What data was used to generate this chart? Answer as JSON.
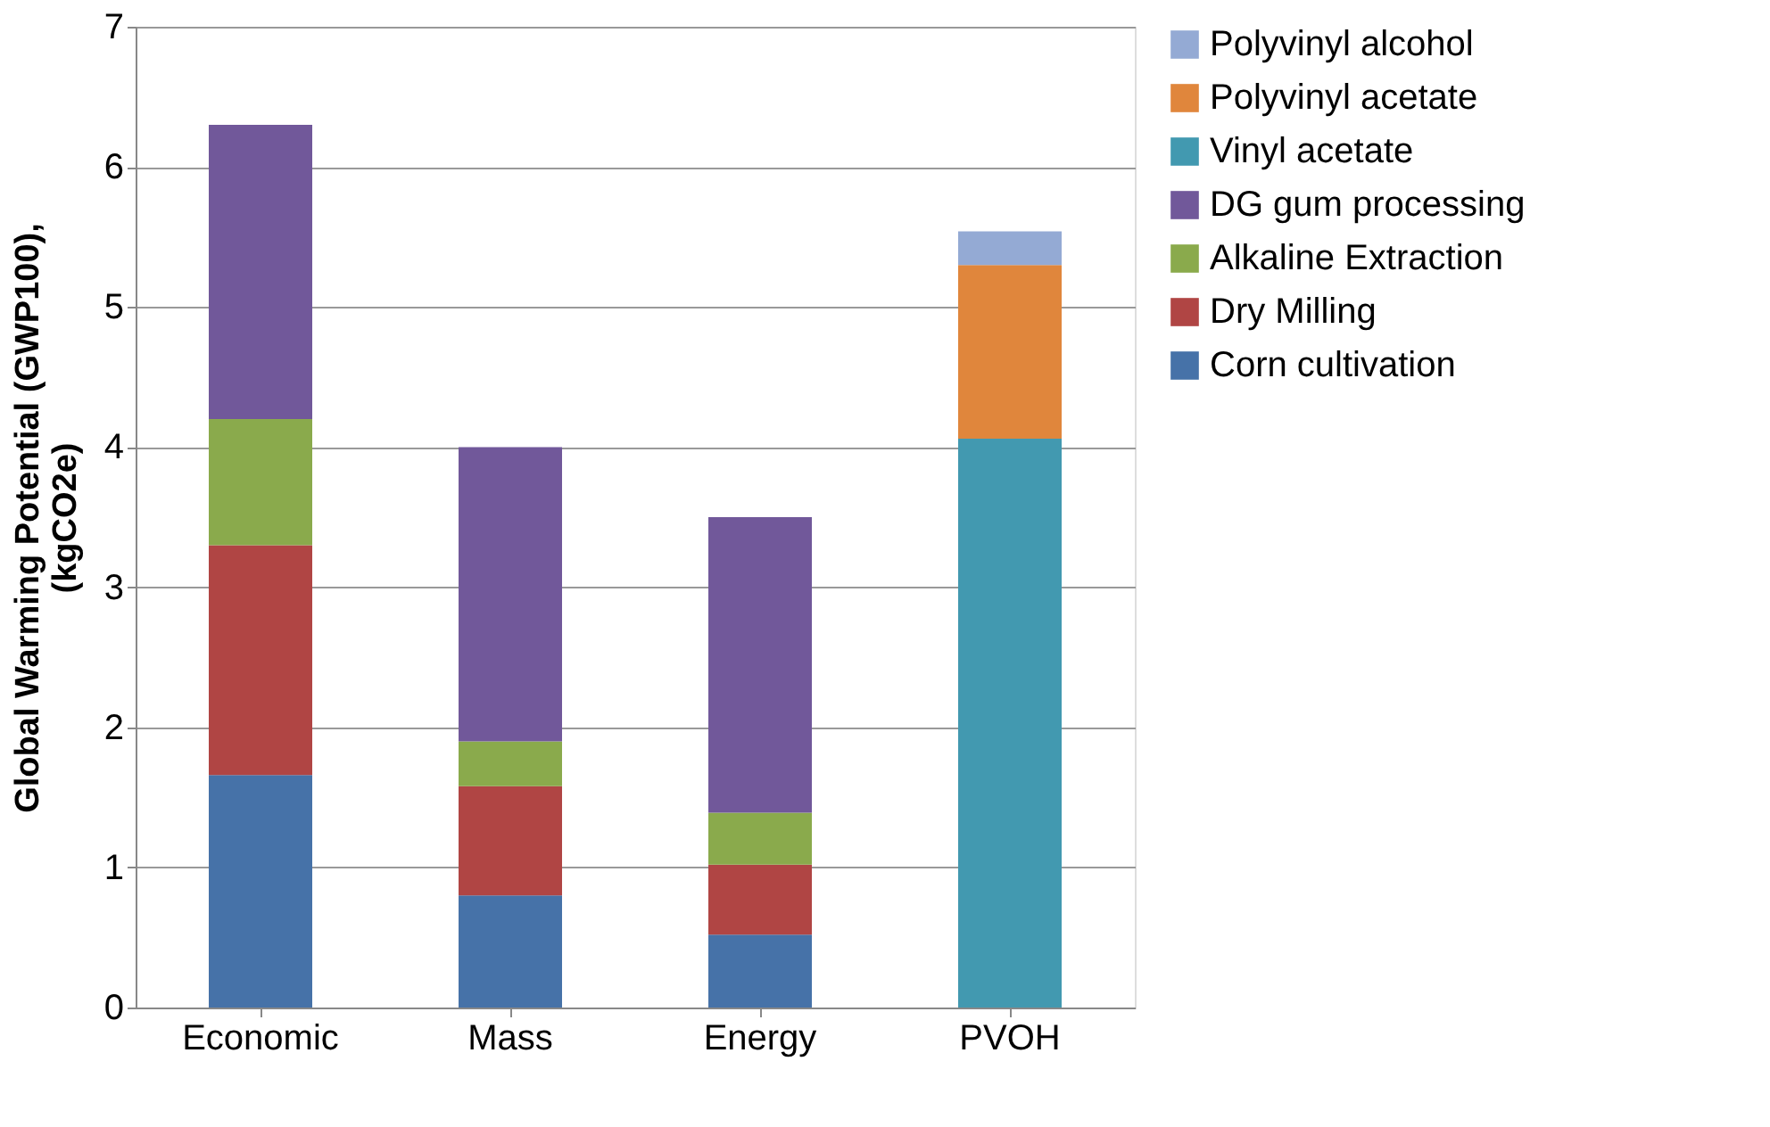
{
  "chart_data": {
    "type": "bar",
    "stacked": true,
    "ylabel": "Global Warming Potential (GWP100), (kgCO2e)",
    "categories": [
      "Economic",
      "Mass",
      "Energy",
      "PVOH"
    ],
    "series": [
      {
        "name": "Corn cultivation",
        "color": "#4672a8",
        "values": [
          1.66,
          0.8,
          0.52,
          null
        ]
      },
      {
        "name": "Dry Milling",
        "color": "#b04544",
        "values": [
          1.64,
          0.78,
          0.5,
          null
        ]
      },
      {
        "name": "Alkaline Extraction",
        "color": "#8aaa4c",
        "values": [
          0.9,
          0.32,
          0.37,
          null
        ]
      },
      {
        "name": "DG gum processing",
        "color": "#71589a",
        "values": [
          2.1,
          2.1,
          2.11,
          null
        ]
      },
      {
        "name": "Vinyl acetate",
        "color": "#4299b0",
        "values": [
          null,
          null,
          null,
          4.06
        ]
      },
      {
        "name": "Polyvinyl acetate",
        "color": "#e0863c",
        "values": [
          null,
          null,
          null,
          1.24
        ]
      },
      {
        "name": "Polyvinyl alcohol",
        "color": "#94aad4",
        "values": [
          null,
          null,
          null,
          0.24
        ]
      }
    ],
    "ylim": [
      0,
      7
    ],
    "yticks": [
      0,
      1,
      2,
      3,
      4,
      5,
      6,
      7
    ],
    "grid": "y",
    "legend": "right"
  }
}
